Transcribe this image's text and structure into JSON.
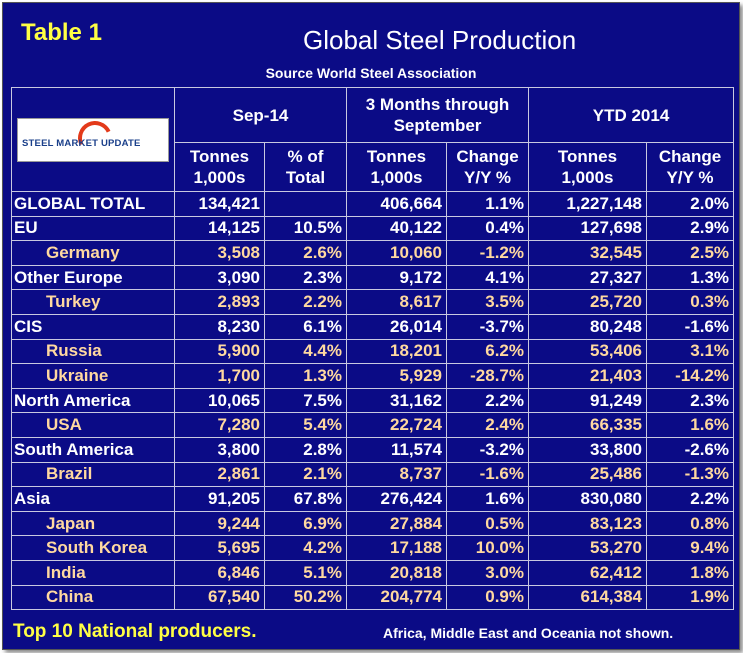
{
  "title_tag": "Table 1",
  "title": "Global Steel Production",
  "source": "Source World Steel Association",
  "logo_text": "STEEL MARKET UPDATE",
  "headers": {
    "period1": "Sep-14",
    "period2_line1": "3 Months through",
    "period2_line2": "September",
    "period3": "YTD 2014",
    "tonnes_line1": "Tonnes",
    "tonnes_line2": "1,000s",
    "pct_line1": "% of",
    "pct_line2": "Total",
    "change_line1": "Change",
    "change_line2": "Y/Y %"
  },
  "rows": [
    {
      "name": "GLOBAL TOTAL",
      "sub": false,
      "sep_t": "134,421",
      "sep_p": "",
      "q_t": "406,664",
      "q_c": "1.1%",
      "y_t": "1,227,148",
      "y_c": "2.0%"
    },
    {
      "name": "EU",
      "sub": false,
      "sep_t": "14,125",
      "sep_p": "10.5%",
      "q_t": "40,122",
      "q_c": "0.4%",
      "y_t": "127,698",
      "y_c": "2.9%"
    },
    {
      "name": "Germany",
      "sub": true,
      "sep_t": "3,508",
      "sep_p": "2.6%",
      "q_t": "10,060",
      "q_c": "-1.2%",
      "y_t": "32,545",
      "y_c": "2.5%"
    },
    {
      "name": "Other Europe",
      "sub": false,
      "sep_t": "3,090",
      "sep_p": "2.3%",
      "q_t": "9,172",
      "q_c": "4.1%",
      "y_t": "27,327",
      "y_c": "1.3%"
    },
    {
      "name": "Turkey",
      "sub": true,
      "sep_t": "2,893",
      "sep_p": "2.2%",
      "q_t": "8,617",
      "q_c": "3.5%",
      "y_t": "25,720",
      "y_c": "0.3%"
    },
    {
      "name": "CIS",
      "sub": false,
      "sep_t": "8,230",
      "sep_p": "6.1%",
      "q_t": "26,014",
      "q_c": "-3.7%",
      "y_t": "80,248",
      "y_c": "-1.6%"
    },
    {
      "name": "Russia",
      "sub": true,
      "sep_t": "5,900",
      "sep_p": "4.4%",
      "q_t": "18,201",
      "q_c": "6.2%",
      "y_t": "53,406",
      "y_c": "3.1%"
    },
    {
      "name": "Ukraine",
      "sub": true,
      "sep_t": "1,700",
      "sep_p": "1.3%",
      "q_t": "5,929",
      "q_c": "-28.7%",
      "y_t": "21,403",
      "y_c": "-14.2%"
    },
    {
      "name": "North America",
      "sub": false,
      "sep_t": "10,065",
      "sep_p": "7.5%",
      "q_t": "31,162",
      "q_c": "2.2%",
      "y_t": "91,249",
      "y_c": "2.3%"
    },
    {
      "name": "USA",
      "sub": true,
      "sep_t": "7,280",
      "sep_p": "5.4%",
      "q_t": "22,724",
      "q_c": "2.4%",
      "y_t": "66,335",
      "y_c": "1.6%"
    },
    {
      "name": "South America",
      "sub": false,
      "sep_t": "3,800",
      "sep_p": "2.8%",
      "q_t": "11,574",
      "q_c": "-3.2%",
      "y_t": "33,800",
      "y_c": "-2.6%"
    },
    {
      "name": "Brazil",
      "sub": true,
      "sep_t": "2,861",
      "sep_p": "2.1%",
      "q_t": "8,737",
      "q_c": "-1.6%",
      "y_t": "25,486",
      "y_c": "-1.3%"
    },
    {
      "name": "Asia",
      "sub": false,
      "sep_t": "91,205",
      "sep_p": "67.8%",
      "q_t": "276,424",
      "q_c": "1.6%",
      "y_t": "830,080",
      "y_c": "2.2%"
    },
    {
      "name": "Japan",
      "sub": true,
      "sep_t": "9,244",
      "sep_p": "6.9%",
      "q_t": "27,884",
      "q_c": "0.5%",
      "y_t": "83,123",
      "y_c": "0.8%"
    },
    {
      "name": "South Korea",
      "sub": true,
      "sep_t": "5,695",
      "sep_p": "4.2%",
      "q_t": "17,188",
      "q_c": "10.0%",
      "y_t": "53,270",
      "y_c": "9.4%"
    },
    {
      "name": "India",
      "sub": true,
      "sep_t": "6,846",
      "sep_p": "5.1%",
      "q_t": "20,818",
      "q_c": "3.0%",
      "y_t": "62,412",
      "y_c": "1.8%"
    },
    {
      "name": "China",
      "sub": true,
      "sep_t": "67,540",
      "sep_p": "50.2%",
      "q_t": "204,774",
      "q_c": "0.9%",
      "y_t": "614,384",
      "y_c": "1.9%"
    }
  ],
  "footer_left": "Top 10 National producers.",
  "footer_right": "Africa, Middle East and Oceania not shown."
}
